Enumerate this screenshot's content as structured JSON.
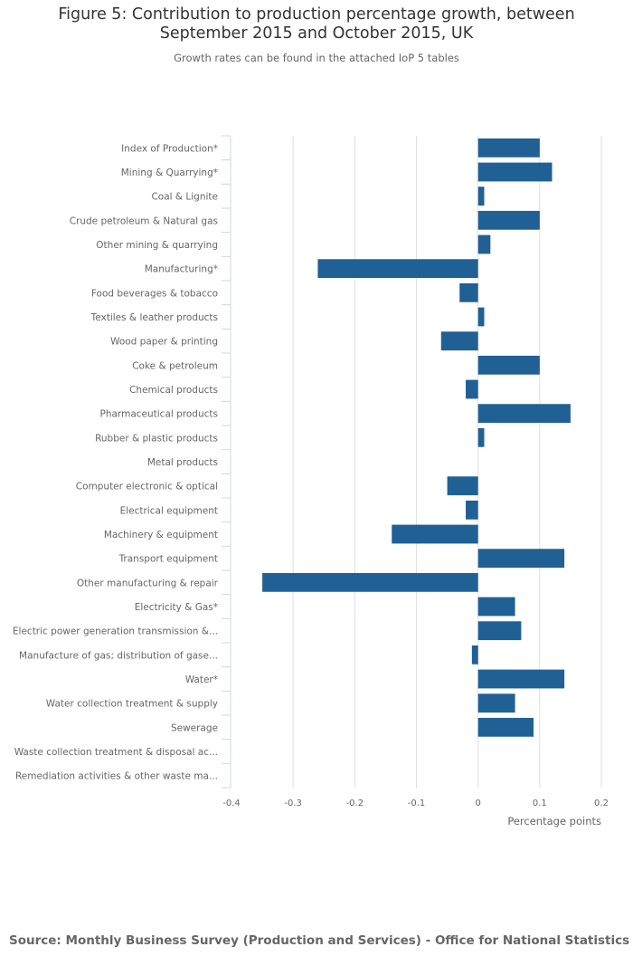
{
  "title_line1": "Figure 5: Contribution to production percentage growth, between",
  "title_line2": "September 2015 and October 2015, UK",
  "subtitle": "Growth rates can be found in the attached IoP 5 tables",
  "source": "Source: Monthly Business Survey (Production and Services) - Office for National Statistics",
  "colors": {
    "bar": "#206095",
    "grid": "#e0e0e0",
    "axis": "#ccd6eb"
  },
  "chart_data": {
    "type": "bar",
    "orientation": "horizontal",
    "title": "Figure 5: Contribution to production percentage growth, between September 2015 and October 2015, UK",
    "subtitle": "Growth rates can be found in the attached IoP 5 tables",
    "xlabel": "Percentage points",
    "ylabel": "",
    "xlim": [
      -0.4,
      0.2
    ],
    "xticks": [
      -0.4,
      -0.3,
      -0.2,
      -0.1,
      0,
      0.1,
      0.2
    ],
    "xtick_labels": [
      "-0.4",
      "-0.3",
      "-0.2",
      "-0.1",
      "0",
      "0.1",
      "0.2"
    ],
    "grid": true,
    "legend": "none",
    "categories": [
      "Index of Production*",
      "Mining & Quarrying*",
      "Coal & Lignite",
      "Crude petroleum & Natural gas",
      "Other mining & quarrying",
      "Manufacturing*",
      "Food beverages & tobacco",
      "Textiles & leather products",
      "Wood paper & printing",
      "Coke & petroleum",
      "Chemical products",
      "Pharmaceutical products",
      "Rubber & plastic products",
      "Metal products",
      "Computer electronic & optical",
      "Electrical equipment",
      "Machinery & equipment",
      "Transport equipment",
      "Other manufacturing & repair",
      "Electricity & Gas*",
      "Electric power generation transmission &...",
      "Manufacture of gas; distribution of gase...",
      "Water*",
      "Water collection treatment & supply",
      "Sewerage",
      "Waste collection treatment & disposal ac...",
      "Remediation activities & other waste ma..."
    ],
    "values": [
      0.1,
      0.12,
      0.01,
      0.1,
      0.02,
      -0.26,
      -0.03,
      0.01,
      -0.06,
      0.1,
      -0.02,
      0.15,
      0.01,
      0.0,
      -0.05,
      -0.02,
      -0.14,
      0.14,
      -0.35,
      0.06,
      0.07,
      -0.01,
      0.14,
      0.06,
      0.09,
      0.0,
      0.0
    ]
  }
}
